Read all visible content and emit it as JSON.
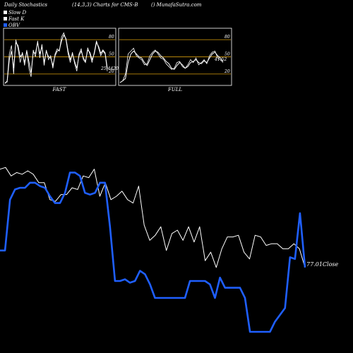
{
  "header": {
    "left": "Daily Stochastics",
    "params": "(14,3,3) Charts for CMS-B",
    "site": "() MunafaSutra.com"
  },
  "legend": [
    {
      "label": "Slow  D",
      "swatch": "#ffffff"
    },
    {
      "label": "Fast K",
      "swatch": "#ffffff"
    },
    {
      "label": "OBV",
      "swatch": "#1f5fff"
    }
  ],
  "chart_data": [
    {
      "type": "line",
      "name": "stochastics-fast",
      "xlabel": "FAST",
      "ylim": [
        0,
        100
      ],
      "ticks": [
        "80",
        "50",
        "20"
      ],
      "tick_values": [
        80,
        50,
        20
      ],
      "last_value_label": "25.4420",
      "series": [
        {
          "name": "Slow  D",
          "values": [
            5,
            6,
            45,
            60,
            30,
            75,
            70,
            50,
            55,
            40,
            60,
            42,
            22,
            58,
            56,
            75,
            55,
            68,
            40,
            60,
            50,
            48,
            35,
            52,
            60,
            62,
            78,
            88,
            82,
            60,
            45,
            55,
            42,
            30,
            52,
            60,
            48,
            42,
            62,
            58,
            45,
            55,
            75,
            68,
            56,
            62,
            57,
            30
          ]
        },
        {
          "name": "Fast K",
          "values": [
            3,
            8,
            55,
            70,
            20,
            80,
            65,
            40,
            58,
            35,
            62,
            30,
            15,
            62,
            50,
            78,
            48,
            72,
            35,
            62,
            45,
            52,
            30,
            55,
            64,
            60,
            85,
            92,
            80,
            55,
            40,
            58,
            38,
            25,
            55,
            64,
            45,
            40,
            66,
            55,
            40,
            58,
            78,
            65,
            52,
            60,
            55,
            25
          ]
        }
      ]
    },
    {
      "type": "line",
      "name": "stochastics-full",
      "xlabel": "FULL",
      "ylim": [
        0,
        100
      ],
      "ticks": [
        "80",
        "50",
        "20"
      ],
      "tick_values": [
        80,
        50,
        20
      ],
      "last_value_label": "41.52",
      "series": [
        {
          "name": "Slow  D",
          "values": [
            5,
            8,
            12,
            40,
            55,
            60,
            55,
            50,
            48,
            40,
            35,
            45,
            55,
            60,
            58,
            52,
            48,
            42,
            38,
            30,
            28,
            35,
            40,
            36,
            30,
            33,
            40,
            42,
            45,
            40,
            38,
            43,
            40,
            48,
            55,
            58,
            52,
            48,
            42
          ]
        },
        {
          "name": "Fast K",
          "values": [
            5,
            8,
            20,
            55,
            60,
            65,
            52,
            48,
            45,
            36,
            38,
            52,
            58,
            62,
            55,
            48,
            46,
            38,
            33,
            28,
            30,
            40,
            42,
            33,
            30,
            36,
            45,
            40,
            48,
            36,
            40,
            45,
            38,
            52,
            58,
            60,
            48,
            45,
            40
          ]
        }
      ]
    },
    {
      "type": "line",
      "name": "price-and-obv",
      "last_value_label": "77.01Close",
      "series": [
        {
          "name": "Close",
          "values": [
            4,
            3,
            8,
            6,
            7,
            5,
            7,
            12,
            12,
            22,
            23,
            19,
            19,
            15,
            16,
            8,
            9,
            4,
            20,
            12,
            22,
            20,
            17,
            22,
            24,
            14,
            37,
            46,
            43,
            38,
            52,
            42,
            40,
            46,
            38,
            47,
            38,
            58,
            53,
            62,
            51,
            44,
            44,
            43,
            53,
            57,
            43,
            44,
            49,
            48,
            48,
            51,
            51,
            48,
            51,
            62
          ]
        },
        {
          "name": "OBV",
          "values": [
            52,
            52,
            22,
            16,
            15,
            15,
            12,
            12,
            14,
            15,
            20,
            24,
            24,
            18,
            6,
            6,
            8,
            18,
            19,
            18,
            12,
            12,
            38,
            70,
            70,
            69,
            71,
            70,
            64,
            66,
            72,
            80,
            80,
            80,
            80,
            80,
            80,
            80,
            70,
            70,
            70,
            70,
            72,
            80,
            68,
            74,
            74,
            74,
            74,
            80,
            100,
            100,
            100,
            100,
            100,
            94,
            90,
            86,
            56,
            57,
            30,
            62
          ]
        }
      ]
    }
  ]
}
